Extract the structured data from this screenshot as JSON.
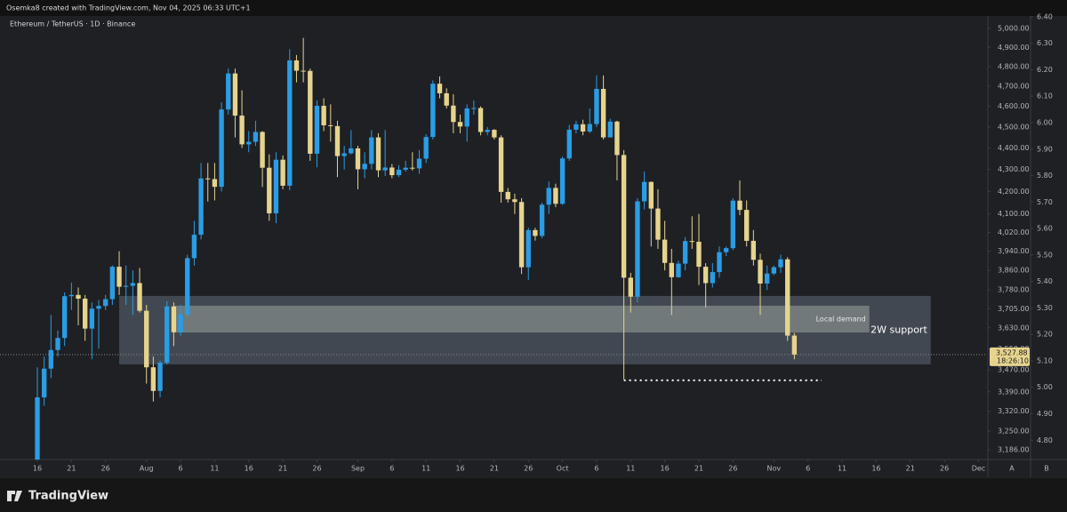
{
  "header": "Osemka8 created with TradingView.com, Nov 04, 2025 06:33 UTC+1",
  "footer": {
    "logo": "TradingView",
    "axis_buttons": [
      "A",
      "B"
    ]
  },
  "chart_data": {
    "type": "candlestick",
    "title": "Ethereum / TetherUS · 1D · Binance",
    "up_color": "#2a9de5",
    "down_color": "#e6d48e",
    "ylog": true,
    "x": [
      "Jul 16",
      "Jul 17",
      "Jul 18",
      "Jul 19",
      "Jul 20",
      "Jul 21",
      "Jul 22",
      "Jul 23",
      "Jul 24",
      "Jul 25",
      "Jul 26",
      "Jul 27",
      "Jul 28",
      "Jul 29",
      "Jul 30",
      "Jul 31",
      "Aug 1",
      "Aug 2",
      "Aug 3",
      "Aug 4",
      "Aug 5",
      "Aug 6",
      "Aug 7",
      "Aug 8",
      "Aug 9",
      "Aug 10",
      "Aug 11",
      "Aug 12",
      "Aug 13",
      "Aug 14",
      "Aug 15",
      "Aug 16",
      "Aug 17",
      "Aug 18",
      "Aug 19",
      "Aug 20",
      "Aug 21",
      "Aug 22",
      "Aug 23",
      "Aug 24",
      "Aug 25",
      "Aug 26",
      "Aug 27",
      "Aug 28",
      "Aug 29",
      "Aug 30",
      "Aug 31",
      "Sep 1",
      "Sep 2",
      "Sep 3",
      "Sep 4",
      "Sep 5",
      "Sep 6",
      "Sep 7",
      "Sep 8",
      "Sep 9",
      "Sep 10",
      "Sep 11",
      "Sep 12",
      "Sep 13",
      "Sep 14",
      "Sep 15",
      "Sep 16",
      "Sep 17",
      "Sep 18",
      "Sep 19",
      "Sep 20",
      "Sep 21",
      "Sep 22",
      "Sep 23",
      "Sep 24",
      "Sep 25",
      "Sep 26",
      "Sep 27",
      "Sep 28",
      "Sep 29",
      "Sep 30",
      "Oct 1",
      "Oct 2",
      "Oct 3",
      "Oct 4",
      "Oct 5",
      "Oct 6",
      "Oct 7",
      "Oct 8",
      "Oct 9",
      "Oct 10",
      "Oct 11",
      "Oct 12",
      "Oct 13",
      "Oct 14",
      "Oct 15",
      "Oct 16",
      "Oct 17",
      "Oct 18",
      "Oct 19",
      "Oct 20",
      "Oct 21",
      "Oct 22",
      "Oct 23",
      "Oct 24",
      "Oct 25",
      "Oct 26",
      "Oct 27",
      "Oct 28",
      "Oct 29",
      "Oct 30",
      "Oct 31",
      "Nov 1",
      "Nov 2",
      "Nov 3",
      "Nov 4"
    ],
    "open": [
      3140,
      3370,
      3475,
      3545,
      3591,
      3755,
      3760,
      3745,
      3627,
      3705,
      3716,
      3743,
      3875,
      3793,
      3797,
      3808,
      3697,
      3480,
      3393,
      3497,
      3714,
      3613,
      3682,
      3911,
      4010,
      4259,
      4256,
      4221,
      4585,
      4765,
      4555,
      4417,
      4429,
      4476,
      4308,
      4103,
      4345,
      4226,
      4832,
      4779,
      4778,
      4373,
      4603,
      4508,
      4504,
      4362,
      4375,
      4398,
      4301,
      4326,
      4450,
      4296,
      4309,
      4274,
      4299,
      4308,
      4305,
      4350,
      4452,
      4713,
      4665,
      4604,
      4524,
      4502,
      4590,
      4592,
      4476,
      4486,
      4450,
      4198,
      4165,
      4153,
      3873,
      4030,
      4005,
      4141,
      4216,
      4145,
      4351,
      4487,
      4513,
      4478,
      4514,
      4687,
      4450,
      4526,
      4367,
      3830,
      3753,
      4156,
      4243,
      4124,
      3989,
      3891,
      3832,
      3888,
      3983,
      3980,
      3875,
      3808,
      3853,
      3936,
      3953,
      4159,
      4118,
      3984,
      3904,
      3806,
      3847,
      3873,
      3906,
      3600
    ],
    "high": [
      3480,
      3520,
      3680,
      3620,
      3770,
      3810,
      3790,
      3760,
      3730,
      3740,
      3760,
      3880,
      3940,
      3880,
      3860,
      3870,
      3720,
      3520,
      3505,
      3735,
      3730,
      3720,
      3925,
      4070,
      4330,
      4330,
      4330,
      4620,
      4790,
      4790,
      4680,
      4480,
      4530,
      4480,
      4370,
      4380,
      4365,
      4890,
      4860,
      4950,
      4790,
      4630,
      4640,
      4610,
      4530,
      4410,
      4485,
      4410,
      4380,
      4485,
      4470,
      4485,
      4325,
      4320,
      4340,
      4380,
      4390,
      4465,
      4730,
      4750,
      4690,
      4660,
      4560,
      4610,
      4630,
      4600,
      4500,
      4490,
      4460,
      4215,
      4190,
      4170,
      4040,
      4040,
      4150,
      4245,
      4235,
      4360,
      4510,
      4530,
      4535,
      4590,
      4755,
      4755,
      4540,
      4530,
      4390,
      3850,
      4170,
      4290,
      4245,
      4210,
      4070,
      3950,
      3900,
      4000,
      4090,
      4100,
      3890,
      3890,
      3960,
      3960,
      4170,
      4250,
      4160,
      4030,
      3930,
      3880,
      3880,
      3925,
      3915,
      3610
    ],
    "low": [
      3100,
      3340,
      3440,
      3520,
      3560,
      3700,
      3640,
      3580,
      3510,
      3550,
      3700,
      3720,
      3760,
      3720,
      3680,
      3690,
      3420,
      3355,
      3370,
      3490,
      3560,
      3600,
      3670,
      3880,
      3990,
      4155,
      4160,
      4200,
      4560,
      4450,
      4400,
      4380,
      4410,
      4220,
      4070,
      4060,
      4210,
      4205,
      4720,
      4720,
      4340,
      4310,
      4480,
      4430,
      4265,
      4300,
      4370,
      4210,
      4260,
      4300,
      4265,
      4270,
      4260,
      4265,
      4290,
      4295,
      4280,
      4330,
      4440,
      4640,
      4590,
      4470,
      4470,
      4430,
      4560,
      4460,
      4460,
      4440,
      4150,
      4150,
      4100,
      3845,
      3820,
      3985,
      3995,
      4100,
      4130,
      4140,
      4340,
      4470,
      4460,
      4470,
      4500,
      4440,
      4450,
      4250,
      3435,
      3690,
      3730,
      4120,
      3960,
      3950,
      3860,
      3680,
      3830,
      3860,
      3950,
      3800,
      3710,
      3790,
      3830,
      3920,
      3945,
      4095,
      3960,
      3880,
      3680,
      3780,
      3840,
      3850,
      3580,
      3510
    ],
    "close": [
      3370,
      3475,
      3545,
      3591,
      3755,
      3760,
      3745,
      3627,
      3705,
      3716,
      3743,
      3875,
      3793,
      3797,
      3808,
      3697,
      3480,
      3393,
      3497,
      3714,
      3613,
      3682,
      3911,
      4010,
      4259,
      4256,
      4221,
      4585,
      4765,
      4555,
      4417,
      4429,
      4476,
      4308,
      4103,
      4345,
      4226,
      4832,
      4779,
      4778,
      4373,
      4603,
      4508,
      4504,
      4362,
      4375,
      4398,
      4301,
      4326,
      4450,
      4296,
      4309,
      4274,
      4299,
      4308,
      4305,
      4350,
      4452,
      4713,
      4665,
      4604,
      4524,
      4502,
      4590,
      4592,
      4476,
      4486,
      4450,
      4198,
      4165,
      4153,
      3873,
      4030,
      4005,
      4141,
      4216,
      4145,
      4351,
      4487,
      4513,
      4478,
      4514,
      4687,
      4450,
      4526,
      4367,
      3830,
      3753,
      4156,
      4243,
      4124,
      3989,
      3891,
      3832,
      3888,
      3983,
      3980,
      3875,
      3808,
      3853,
      3936,
      3953,
      4159,
      4118,
      3984,
      3904,
      3806,
      3847,
      3873,
      3906,
      3600,
      3527.88
    ],
    "ylim": [
      3153,
      5067
    ],
    "yticks": [
      {
        "value": 5000,
        "label": "5,000.00"
      },
      {
        "value": 4900,
        "label": "4,900.00"
      },
      {
        "value": 4800,
        "label": "4,800.00"
      },
      {
        "value": 4700,
        "label": "4,700.00"
      },
      {
        "value": 4600,
        "label": "4,600.00"
      },
      {
        "value": 4500,
        "label": "4,500.00"
      },
      {
        "value": 4400,
        "label": "4,400.00"
      },
      {
        "value": 4300,
        "label": "4,300.00"
      },
      {
        "value": 4200,
        "label": "4,200.00"
      },
      {
        "value": 4100,
        "label": "4,100.00"
      },
      {
        "value": 4020,
        "label": "4,020.00"
      },
      {
        "value": 3940,
        "label": "3,940.00"
      },
      {
        "value": 3860,
        "label": "3,860.00"
      },
      {
        "value": 3780,
        "label": "3,780.00"
      },
      {
        "value": 3705,
        "label": "3,705.00"
      },
      {
        "value": 3630,
        "label": "3,630.00"
      },
      {
        "value": 3550,
        "label": "3,550.00"
      },
      {
        "value": 3470,
        "label": "3,470.00"
      },
      {
        "value": 3390,
        "label": "3,390.00"
      },
      {
        "value": 3320,
        "label": "3,320.00"
      },
      {
        "value": 3250,
        "label": "3,250.00"
      },
      {
        "value": 3186,
        "label": "3,186.00"
      }
    ],
    "y2lim": [
      4.727,
      6.403
    ],
    "y2ticks": [
      {
        "value": 4.8,
        "label": "4.80"
      },
      {
        "value": 4.9,
        "label": "4.90"
      },
      {
        "value": 5,
        "label": "5.00"
      },
      {
        "value": 5.1,
        "label": "5.10"
      },
      {
        "value": 5.2,
        "label": "5.20"
      },
      {
        "value": 5.3,
        "label": "5.30"
      },
      {
        "value": 5.4,
        "label": "5.40"
      },
      {
        "value": 5.5,
        "label": "5.50"
      },
      {
        "value": 5.6,
        "label": "5.60"
      },
      {
        "value": 5.7,
        "label": "5.70"
      },
      {
        "value": 5.8,
        "label": "5.80"
      },
      {
        "value": 5.9,
        "label": "5.90"
      },
      {
        "value": 6,
        "label": "6.00"
      },
      {
        "value": 6.1,
        "label": "6.10"
      },
      {
        "value": 6.2,
        "label": "6.20"
      },
      {
        "value": 6.3,
        "label": "6.30"
      },
      {
        "value": 6.4,
        "label": "6.40"
      }
    ],
    "xticks": [
      {
        "value": "Jul 16",
        "label": "16"
      },
      {
        "value": "Jul 21",
        "label": "21"
      },
      {
        "value": "Jul 26",
        "label": "26"
      },
      {
        "value": "Aug 1",
        "label": "Aug"
      },
      {
        "value": "Aug 6",
        "label": "6"
      },
      {
        "value": "Aug 11",
        "label": "11"
      },
      {
        "value": "Aug 16",
        "label": "16"
      },
      {
        "value": "Aug 21",
        "label": "21"
      },
      {
        "value": "Aug 26",
        "label": "26"
      },
      {
        "value": "Sep 1",
        "label": "Sep"
      },
      {
        "value": "Sep 6",
        "label": "6"
      },
      {
        "value": "Sep 11",
        "label": "11"
      },
      {
        "value": "Sep 16",
        "label": "16"
      },
      {
        "value": "Sep 21",
        "label": "21"
      },
      {
        "value": "Sep 26",
        "label": "26"
      },
      {
        "value": "Oct 1",
        "label": "Oct"
      },
      {
        "value": "Oct 6",
        "label": "6"
      },
      {
        "value": "Oct 11",
        "label": "11"
      },
      {
        "value": "Oct 16",
        "label": "16"
      },
      {
        "value": "Oct 21",
        "label": "21"
      },
      {
        "value": "Oct 26",
        "label": "26"
      },
      {
        "value": "Nov 1",
        "label": "Nov"
      },
      {
        "value": "Nov 6",
        "label": "6"
      },
      {
        "value": "Nov 11",
        "label": "11"
      },
      {
        "value": "Nov 16",
        "label": "16"
      },
      {
        "value": "Nov 21",
        "label": "21"
      },
      {
        "value": "Nov 26",
        "label": "26"
      },
      {
        "value": "Dec 1",
        "label": "Dec"
      }
    ],
    "zones": [
      {
        "label": "2W support",
        "top": 3756,
        "bottom": 3491,
        "start": "Jul 28",
        "end": "Nov 24"
      },
      {
        "label": "Local demand",
        "top": 3717,
        "bottom": 3612,
        "start": "Aug 5",
        "end": "Nov 15"
      }
    ],
    "levels": [
      {
        "price": 3432,
        "start": "Oct 10",
        "end": "Nov 8"
      }
    ],
    "last_price": {
      "value": 3527.88,
      "label": "3,527.88",
      "countdown": "18:26:10"
    }
  }
}
